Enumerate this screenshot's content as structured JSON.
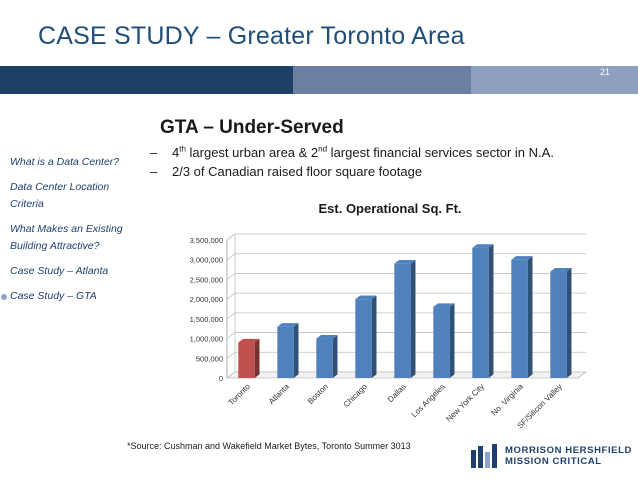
{
  "slide": {
    "title": "CASE STUDY – Greater Toronto Area",
    "page_number": "21",
    "heading": "GTA – Under-Served"
  },
  "sidebar": {
    "items": [
      {
        "label": "What is a Data Center?",
        "active": false
      },
      {
        "label": "Data Center Location Criteria",
        "active": false
      },
      {
        "label": "What Makes an Existing Building Attractive?",
        "active": false
      },
      {
        "label": "Case Study – Atlanta",
        "active": false
      },
      {
        "label": "Case Study – GTA",
        "active": true
      }
    ]
  },
  "bullets": [
    {
      "dash": "–",
      "parts": [
        "4",
        "th",
        " largest urban area & 2",
        "nd",
        " largest financial services sector in N.A."
      ]
    },
    {
      "dash": "–",
      "text": "2/3 of Canadian raised floor square footage"
    }
  ],
  "chart_data": {
    "type": "bar",
    "title": "Est. Operational Sq. Ft.",
    "categories": [
      "Toronto",
      "Atlanta",
      "Boston",
      "Chicago",
      "Dallas",
      "Los Angeles",
      "New York City",
      "No. Virginia",
      "SF/Silicon Valley"
    ],
    "values": [
      900000,
      1300000,
      1000000,
      2000000,
      2900000,
      1800000,
      3300000,
      3000000,
      2700000
    ],
    "ylim": [
      0,
      3500000
    ],
    "yticks": [
      "0",
      "500,000",
      "1,000,000",
      "1,500,000",
      "2,000,000",
      "2,500,000",
      "3,000,000",
      "3,500,000"
    ],
    "highlight_index": 0,
    "colors": {
      "default": "#4f81bd",
      "highlight": "#c0504d"
    },
    "grid": true,
    "legend": "none"
  },
  "source": "*Source: Cushman and Wakefield Market Bytes, Toronto Summer 3013",
  "logo": {
    "line1": "MORRISON HERSHFIELD",
    "line2": "MISSION CRITICAL"
  }
}
